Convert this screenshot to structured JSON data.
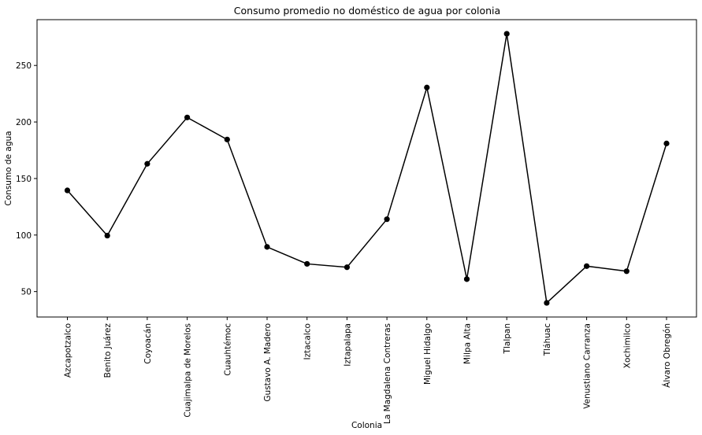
{
  "chart_data": {
    "type": "line",
    "title": "Consumo promedio no doméstico de agua por colonia",
    "xlabel": "Colonia",
    "ylabel": "Consumo de agua",
    "categories": [
      "Azcapotzalco",
      "Benito Juárez",
      "Coyoacán",
      "Cuajimalpa de Morelos",
      "Cuauhtémoc",
      "Gustavo A. Madero",
      "Iztacalco",
      "Iztapalapa",
      "La Magdalena Contreras",
      "Miguel Hidalgo",
      "Milpa Alta",
      "Tlalpan",
      "Tláhuac",
      "Venustiano Carranza",
      "Xochimilco",
      "Álvaro Obregón"
    ],
    "series": [
      {
        "values": [
          139.5,
          99.5,
          163,
          204,
          184.5,
          89.5,
          74.5,
          71.5,
          114,
          230.5,
          61,
          278,
          40,
          72.5,
          68,
          181
        ],
        "color": "#000000",
        "marker": "circle"
      }
    ],
    "yticks": [
      50,
      100,
      150,
      200,
      250
    ],
    "ylim": [
      27.5,
      290.5
    ],
    "grid": false,
    "legend": "none"
  }
}
